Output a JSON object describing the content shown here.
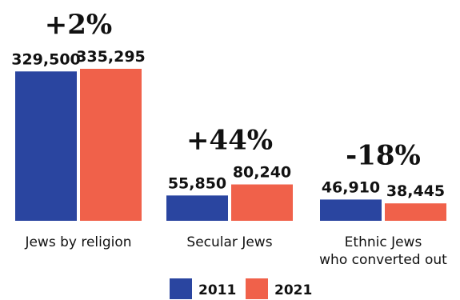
{
  "chart_data": {
    "type": "bar",
    "categories": [
      "Jews by religion",
      "Secular Jews",
      "Ethnic Jews\nwho converted out"
    ],
    "series": [
      {
        "name": "2011",
        "values": [
          329500,
          55850,
          46910
        ],
        "labels": [
          "329,500",
          "55,850",
          "46,910"
        ],
        "color": "#2a45a0"
      },
      {
        "name": "2021",
        "values": [
          335295,
          80240,
          38445
        ],
        "labels": [
          "335,295",
          "80,240",
          "38,445"
        ],
        "color": "#f0614a"
      }
    ],
    "changes": [
      "+2%",
      "+44%",
      "-18%"
    ],
    "legend": [
      "2011",
      "2021"
    ],
    "legend_position": "bottom-center",
    "ylim": [
      0,
      335295
    ],
    "grid": false
  }
}
